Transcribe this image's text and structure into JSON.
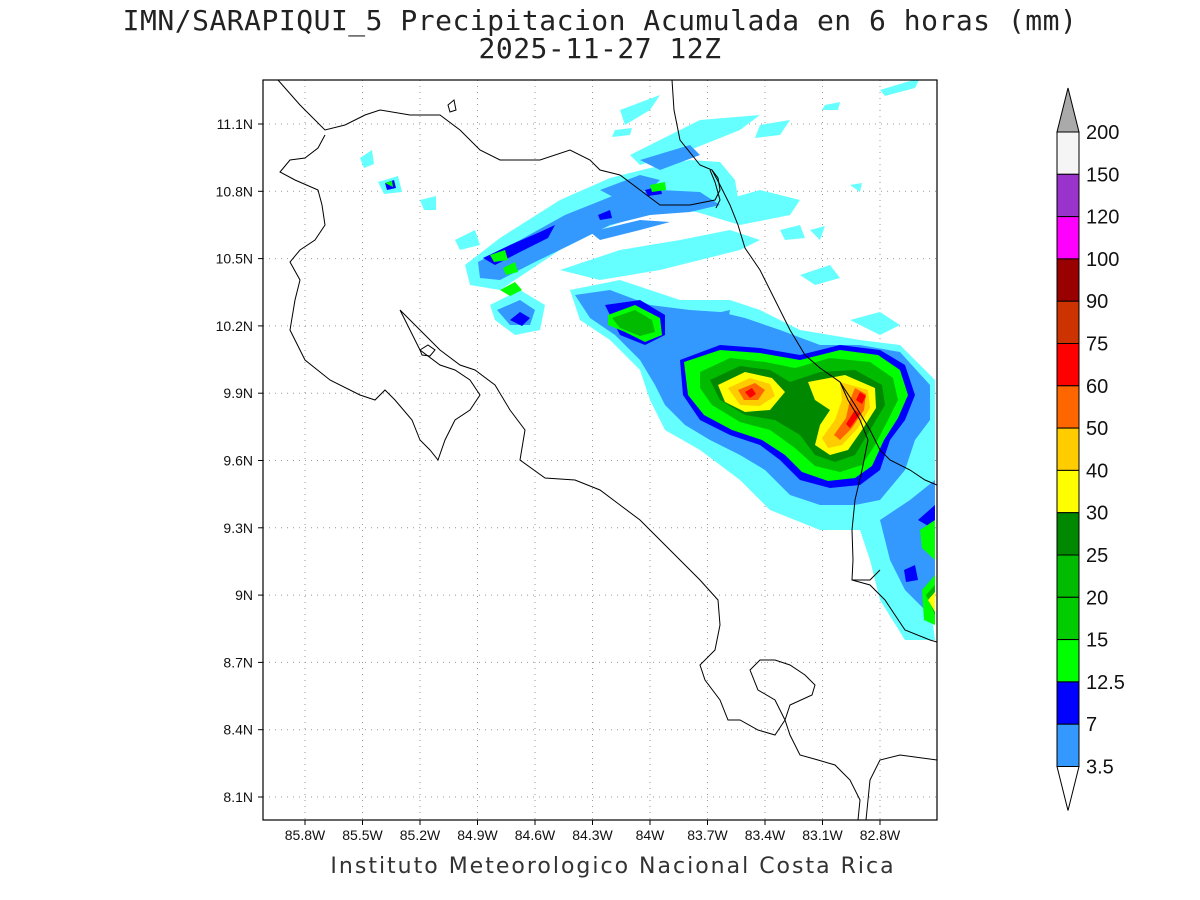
{
  "title": {
    "line1": "IMN/SARAPIQUI_5 Precipitacion Acumulada en 6 horas (mm)",
    "line2": "2025-11-27 12Z"
  },
  "footer": {
    "credit": "Instituto Meteorologico Nacional Costa Rica"
  },
  "map": {
    "lat_ticks": [
      "11.1N",
      "10.8N",
      "10.5N",
      "10.2N",
      "9.9N",
      "9.6N",
      "9.3N",
      "9N",
      "8.7N",
      "8.4N",
      "8.1N"
    ],
    "lon_ticks": [
      "85.8W",
      "85.5W",
      "85.2W",
      "84.9W",
      "84.6W",
      "84.3W",
      "84W",
      "83.7W",
      "83.4W",
      "83.1W",
      "82.8W"
    ],
    "grid": "dotted"
  },
  "legend": {
    "levels": [
      "200",
      "150",
      "120",
      "100",
      "90",
      "75",
      "60",
      "50",
      "40",
      "30",
      "25",
      "20",
      "15",
      "12.5",
      "7",
      "3.5"
    ],
    "colors": {
      "3.5": "#66ffff",
      "7": "#3399ff",
      "12.5": "#0000ff",
      "15": "#00ff00",
      "20": "#00cc00",
      "25": "#00bb00",
      "30": "#008800",
      "40": "#ffff00",
      "50": "#ffcc00",
      "60": "#ff6600",
      "75": "#ff0000",
      "90": "#cc3300",
      "100": "#990000",
      "120": "#ff00ff",
      "150": "#9933cc",
      "200": "#f5f5f5",
      "above": "#aaaaaa"
    }
  }
}
